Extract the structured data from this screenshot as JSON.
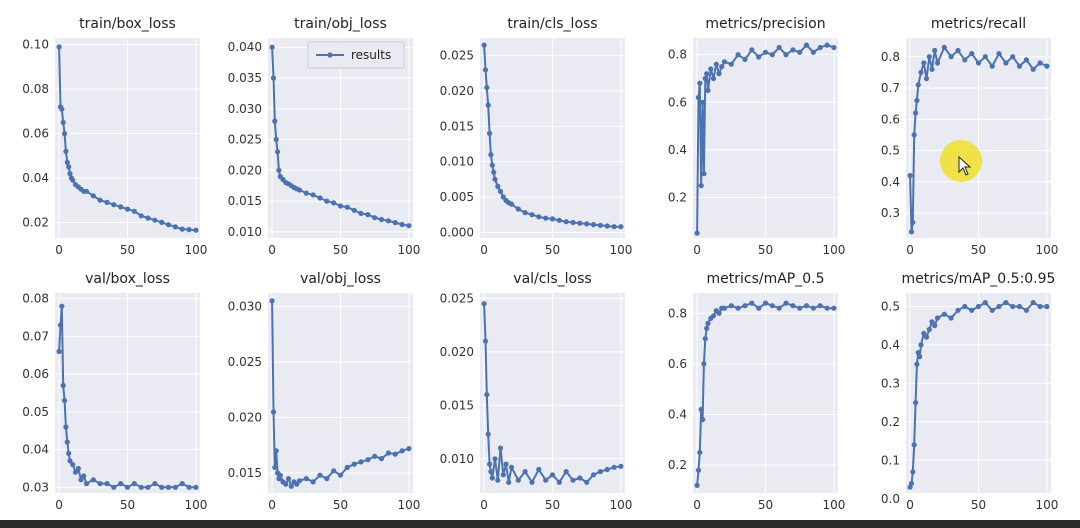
{
  "legend": {
    "label": "results",
    "color": "#4c72b0"
  },
  "cursor": {
    "icon": "pointer-arrow-icon",
    "highlight_color": "#f0e128"
  },
  "chart_data": [
    {
      "type": "line",
      "title": "train/box_loss",
      "x_ticks": [
        "0",
        "50",
        "100"
      ],
      "y_ticks": [
        "0.02",
        "0.04",
        "0.06",
        "0.08",
        "0.10"
      ],
      "xlim": [
        -3,
        103
      ],
      "ylim": [
        0.013,
        0.103
      ],
      "x": [
        0,
        1,
        2,
        3,
        4,
        5,
        6,
        7,
        8,
        9,
        10,
        12,
        14,
        16,
        18,
        20,
        25,
        30,
        35,
        40,
        45,
        50,
        55,
        60,
        65,
        70,
        75,
        80,
        85,
        90,
        95,
        100
      ],
      "values": [
        0.099,
        0.072,
        0.071,
        0.065,
        0.06,
        0.052,
        0.047,
        0.045,
        0.042,
        0.04,
        0.039,
        0.037,
        0.036,
        0.035,
        0.034,
        0.034,
        0.032,
        0.03,
        0.029,
        0.028,
        0.027,
        0.026,
        0.025,
        0.023,
        0.022,
        0.021,
        0.02,
        0.019,
        0.018,
        0.017,
        0.0168,
        0.0165
      ]
    },
    {
      "type": "line",
      "title": "train/obj_loss",
      "x_ticks": [
        "0",
        "50",
        "100"
      ],
      "y_ticks": [
        "0.010",
        "0.015",
        "0.020",
        "0.025",
        "0.030",
        "0.035",
        "0.040"
      ],
      "xlim": [
        -3,
        103
      ],
      "ylim": [
        0.009,
        0.0415
      ],
      "x": [
        0,
        1,
        2,
        3,
        4,
        5,
        6,
        8,
        10,
        12,
        14,
        16,
        18,
        20,
        25,
        30,
        35,
        40,
        45,
        50,
        55,
        60,
        65,
        70,
        75,
        80,
        85,
        90,
        95,
        100
      ],
      "values": [
        0.04,
        0.035,
        0.028,
        0.025,
        0.023,
        0.02,
        0.019,
        0.0185,
        0.018,
        0.0178,
        0.0175,
        0.0172,
        0.017,
        0.0168,
        0.0163,
        0.016,
        0.0155,
        0.015,
        0.0147,
        0.0142,
        0.014,
        0.0135,
        0.013,
        0.0128,
        0.0123,
        0.012,
        0.0118,
        0.0115,
        0.0112,
        0.011
      ]
    },
    {
      "type": "line",
      "title": "train/cls_loss",
      "x_ticks": [
        "0",
        "50",
        "100"
      ],
      "y_ticks": [
        "0.000",
        "0.005",
        "0.010",
        "0.015",
        "0.020",
        "0.025"
      ],
      "xlim": [
        -3,
        103
      ],
      "ylim": [
        -0.0008,
        0.0275
      ],
      "x": [
        0,
        1,
        2,
        3,
        4,
        5,
        6,
        7,
        8,
        10,
        12,
        14,
        16,
        18,
        20,
        25,
        30,
        35,
        40,
        45,
        50,
        55,
        60,
        65,
        70,
        75,
        80,
        85,
        90,
        95,
        100
      ],
      "values": [
        0.0265,
        0.023,
        0.0205,
        0.018,
        0.014,
        0.011,
        0.0095,
        0.0085,
        0.0075,
        0.0065,
        0.0058,
        0.005,
        0.0045,
        0.0042,
        0.004,
        0.0033,
        0.0028,
        0.0025,
        0.0022,
        0.002,
        0.0019,
        0.0017,
        0.0015,
        0.0014,
        0.0013,
        0.0012,
        0.0011,
        0.001,
        0.0009,
        0.0008,
        0.0008
      ]
    },
    {
      "type": "line",
      "title": "metrics/precision",
      "x_ticks": [
        "0",
        "50",
        "100"
      ],
      "y_ticks": [
        "0.2",
        "0.4",
        "0.6",
        "0.8"
      ],
      "xlim": [
        -3,
        103
      ],
      "ylim": [
        0.03,
        0.87
      ],
      "x": [
        0,
        1,
        2,
        3,
        4,
        5,
        6,
        7,
        8,
        10,
        12,
        14,
        16,
        18,
        20,
        25,
        30,
        35,
        40,
        45,
        50,
        55,
        60,
        65,
        70,
        75,
        80,
        85,
        90,
        95,
        100
      ],
      "values": [
        0.05,
        0.62,
        0.68,
        0.25,
        0.6,
        0.3,
        0.7,
        0.72,
        0.65,
        0.74,
        0.7,
        0.76,
        0.72,
        0.75,
        0.77,
        0.76,
        0.8,
        0.78,
        0.82,
        0.79,
        0.81,
        0.8,
        0.83,
        0.8,
        0.82,
        0.81,
        0.84,
        0.81,
        0.83,
        0.84,
        0.83
      ]
    },
    {
      "type": "line",
      "title": "metrics/recall",
      "x_ticks": [
        "0",
        "50",
        "100"
      ],
      "y_ticks": [
        "0.3",
        "0.4",
        "0.5",
        "0.6",
        "0.7",
        "0.8"
      ],
      "xlim": [
        -3,
        103
      ],
      "ylim": [
        0.22,
        0.86
      ],
      "x": [
        0,
        1,
        2,
        3,
        4,
        5,
        6,
        8,
        10,
        12,
        14,
        16,
        18,
        20,
        25,
        30,
        35,
        40,
        45,
        50,
        55,
        60,
        65,
        70,
        75,
        80,
        85,
        90,
        95,
        100
      ],
      "values": [
        0.42,
        0.24,
        0.27,
        0.55,
        0.62,
        0.66,
        0.71,
        0.75,
        0.78,
        0.73,
        0.8,
        0.76,
        0.82,
        0.78,
        0.83,
        0.8,
        0.82,
        0.79,
        0.81,
        0.78,
        0.8,
        0.77,
        0.81,
        0.78,
        0.8,
        0.77,
        0.79,
        0.76,
        0.78,
        0.77
      ]
    },
    {
      "type": "line",
      "title": "val/box_loss",
      "x_ticks": [
        "0",
        "50",
        "100"
      ],
      "y_ticks": [
        "0.03",
        "0.04",
        "0.05",
        "0.06",
        "0.07",
        "0.08"
      ],
      "xlim": [
        -3,
        103
      ],
      "ylim": [
        0.0285,
        0.0815
      ],
      "x": [
        0,
        1,
        2,
        3,
        4,
        5,
        6,
        7,
        8,
        10,
        12,
        14,
        16,
        18,
        20,
        25,
        30,
        35,
        40,
        45,
        50,
        55,
        60,
        65,
        70,
        75,
        80,
        85,
        90,
        95,
        100
      ],
      "values": [
        0.066,
        0.073,
        0.078,
        0.057,
        0.053,
        0.046,
        0.042,
        0.039,
        0.037,
        0.036,
        0.034,
        0.035,
        0.032,
        0.033,
        0.031,
        0.032,
        0.031,
        0.031,
        0.03,
        0.031,
        0.03,
        0.031,
        0.03,
        0.03,
        0.031,
        0.03,
        0.03,
        0.03,
        0.031,
        0.03,
        0.03
      ]
    },
    {
      "type": "line",
      "title": "val/obj_loss",
      "x_ticks": [
        "0",
        "50",
        "100"
      ],
      "y_ticks": [
        "0.015",
        "0.020",
        "0.025",
        "0.030"
      ],
      "xlim": [
        -3,
        103
      ],
      "ylim": [
        0.0132,
        0.0312
      ],
      "x": [
        0,
        1,
        2,
        3,
        4,
        5,
        6,
        8,
        10,
        12,
        14,
        16,
        18,
        20,
        25,
        30,
        35,
        40,
        45,
        50,
        55,
        60,
        65,
        70,
        75,
        80,
        85,
        90,
        95,
        100
      ],
      "values": [
        0.0305,
        0.0205,
        0.0155,
        0.017,
        0.015,
        0.0145,
        0.0148,
        0.0142,
        0.014,
        0.0145,
        0.0138,
        0.0142,
        0.014,
        0.0143,
        0.0145,
        0.0142,
        0.0148,
        0.0145,
        0.0152,
        0.0148,
        0.0155,
        0.0158,
        0.016,
        0.0162,
        0.0165,
        0.0163,
        0.0168,
        0.0167,
        0.017,
        0.0172
      ]
    },
    {
      "type": "line",
      "title": "val/cls_loss",
      "x_ticks": [
        "0",
        "50",
        "100"
      ],
      "y_ticks": [
        "0.010",
        "0.015",
        "0.020",
        "0.025"
      ],
      "xlim": [
        -3,
        103
      ],
      "ylim": [
        0.0068,
        0.0255
      ],
      "x": [
        0,
        1,
        2,
        3,
        4,
        5,
        6,
        8,
        10,
        12,
        14,
        16,
        18,
        20,
        25,
        30,
        35,
        40,
        45,
        50,
        55,
        60,
        65,
        70,
        75,
        80,
        85,
        90,
        95,
        100
      ],
      "values": [
        0.0245,
        0.021,
        0.016,
        0.0123,
        0.0095,
        0.0088,
        0.0082,
        0.01,
        0.008,
        0.011,
        0.0085,
        0.0095,
        0.0078,
        0.0092,
        0.008,
        0.0088,
        0.0078,
        0.009,
        0.008,
        0.0085,
        0.0078,
        0.0088,
        0.008,
        0.0082,
        0.0078,
        0.0085,
        0.0088,
        0.009,
        0.0092,
        0.0093
      ]
    },
    {
      "type": "line",
      "title": "metrics/mAP_0.5",
      "x_ticks": [
        "0",
        "50",
        "100"
      ],
      "y_ticks": [
        "0.2",
        "0.4",
        "0.6",
        "0.8"
      ],
      "xlim": [
        -3,
        103
      ],
      "ylim": [
        0.09,
        0.88
      ],
      "x": [
        0,
        1,
        2,
        3,
        4,
        5,
        6,
        7,
        8,
        10,
        12,
        14,
        16,
        18,
        20,
        25,
        30,
        35,
        40,
        45,
        50,
        55,
        60,
        65,
        70,
        75,
        80,
        85,
        90,
        95,
        100
      ],
      "values": [
        0.12,
        0.18,
        0.25,
        0.42,
        0.38,
        0.6,
        0.7,
        0.74,
        0.76,
        0.78,
        0.79,
        0.81,
        0.8,
        0.82,
        0.82,
        0.83,
        0.82,
        0.83,
        0.84,
        0.82,
        0.84,
        0.83,
        0.82,
        0.84,
        0.83,
        0.82,
        0.83,
        0.82,
        0.83,
        0.82,
        0.82
      ]
    },
    {
      "type": "line",
      "title": "metrics/mAP_0.5:0.95",
      "x_ticks": [
        "0",
        "50",
        "100"
      ],
      "y_ticks": [
        "0.0",
        "0.1",
        "0.2",
        "0.3",
        "0.4",
        "0.5"
      ],
      "xlim": [
        -3,
        103
      ],
      "ylim": [
        0.015,
        0.535
      ],
      "x": [
        0,
        1,
        2,
        3,
        4,
        5,
        6,
        7,
        8,
        10,
        12,
        14,
        16,
        18,
        20,
        25,
        30,
        35,
        40,
        45,
        50,
        55,
        60,
        65,
        70,
        75,
        80,
        85,
        90,
        95,
        100
      ],
      "values": [
        0.03,
        0.04,
        0.07,
        0.14,
        0.25,
        0.35,
        0.38,
        0.37,
        0.4,
        0.43,
        0.42,
        0.44,
        0.46,
        0.45,
        0.47,
        0.48,
        0.47,
        0.49,
        0.5,
        0.49,
        0.5,
        0.51,
        0.49,
        0.5,
        0.51,
        0.5,
        0.5,
        0.49,
        0.51,
        0.5,
        0.5
      ]
    }
  ]
}
